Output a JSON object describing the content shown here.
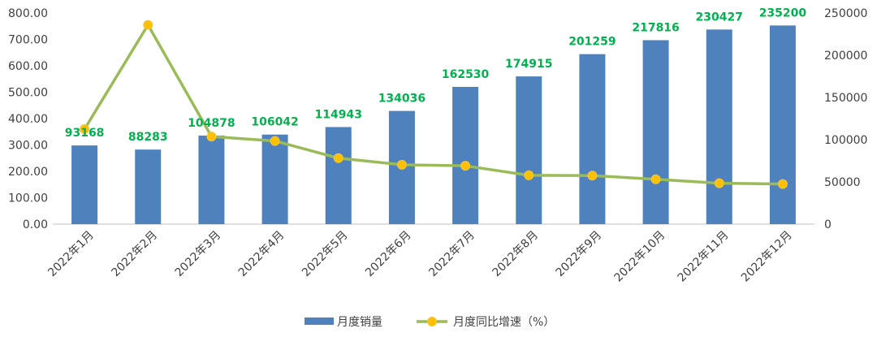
{
  "chart_data": {
    "type": "bar+line",
    "categories": [
      "2022年1月",
      "2022年2月",
      "2022年3月",
      "2022年4月",
      "2022年5月",
      "2022年6月",
      "2022年7月",
      "2022年8月",
      "2022年9月",
      "2022年10月",
      "2022年11月",
      "2022年12月"
    ],
    "series": [
      {
        "name": "月度销量",
        "type": "bar",
        "axis": "right",
        "color": "#4f81bd",
        "values": [
          93168,
          88283,
          104878,
          106042,
          114943,
          134036,
          162530,
          174915,
          201259,
          217816,
          230427,
          235200
        ],
        "data_labels": [
          "93168",
          "88283",
          "104878",
          "106042",
          "114943",
          "134036",
          "162530",
          "174915",
          "201259",
          "217816",
          "230427",
          "235200"
        ]
      },
      {
        "name": "月度同比增速（%）",
        "type": "line",
        "axis": "left",
        "color": "#9bbb59",
        "marker_color": "#ffc000",
        "values": [
          360,
          755,
          332,
          315,
          250,
          225,
          221,
          185,
          184,
          170,
          155,
          152
        ]
      }
    ],
    "left_axis": {
      "ylim": [
        0,
        800
      ],
      "ticks": [
        "0.00",
        "100.00",
        "200.00",
        "300.00",
        "400.00",
        "500.00",
        "600.00",
        "700.00",
        "800.00"
      ]
    },
    "right_axis": {
      "ylim": [
        0,
        250000
      ],
      "ticks": [
        "0",
        "50000",
        "100000",
        "150000",
        "200000",
        "250000"
      ]
    },
    "data_label_color": "#00b050",
    "grid": false,
    "legend_position": "bottom"
  }
}
